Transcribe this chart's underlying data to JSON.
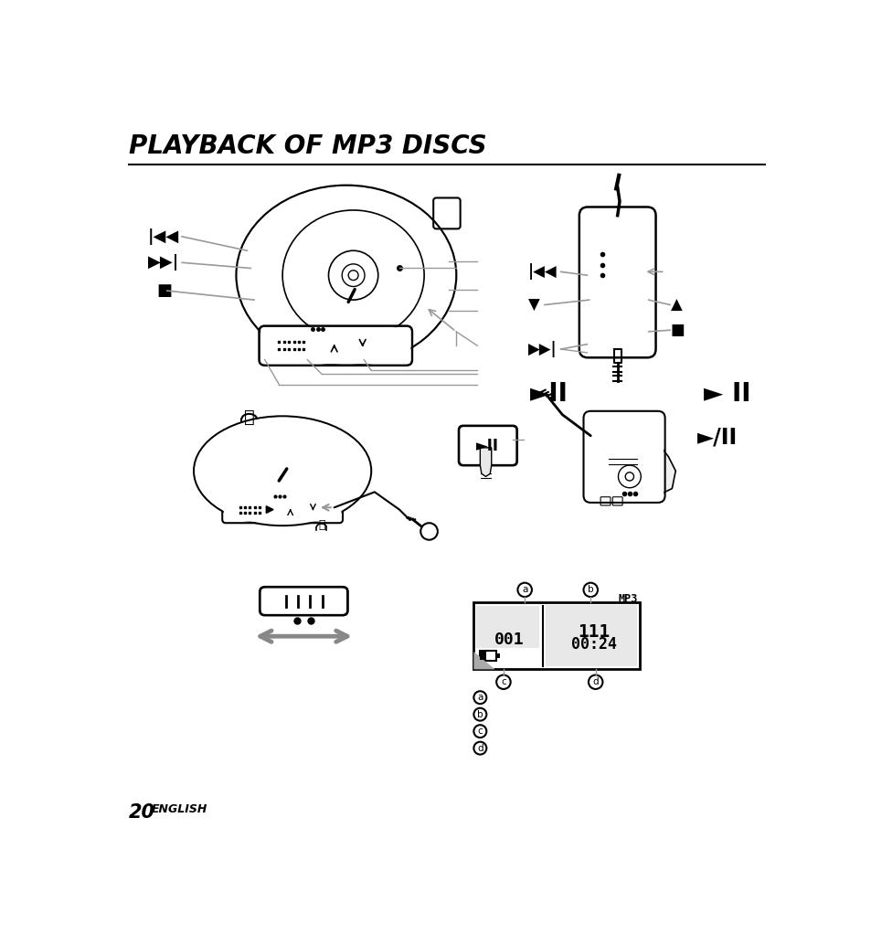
{
  "title": "PLAYBACK OF MP3 DISCS",
  "page_number": "20",
  "page_language": "ENGLISH",
  "background_color": "#ffffff",
  "text_color": "#000000",
  "gray_color": "#999999",
  "dark_gray": "#555555",
  "title_fontsize": 20,
  "page_num_fontsize": 15,
  "symbol_fontsize": 13,
  "label_fontsize": 10,
  "play_pause_big_fontsize": 20
}
